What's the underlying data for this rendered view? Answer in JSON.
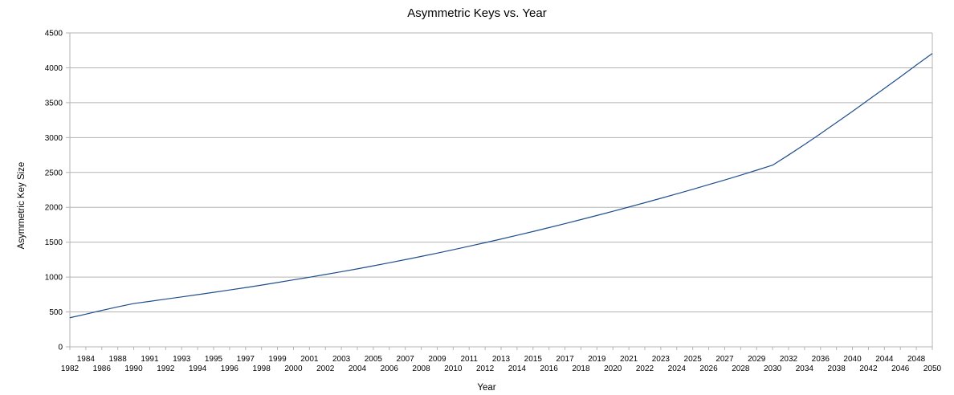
{
  "chart_data": {
    "type": "line",
    "title": "Asymmetric Keys vs. Year",
    "xlabel": "Year",
    "ylabel": "Asymmetric Key Size",
    "grid": true,
    "legend": "none",
    "ylim": [
      0,
      4500
    ],
    "yticks": [
      0,
      500,
      1000,
      1500,
      2000,
      2500,
      3000,
      3500,
      4000,
      4500
    ],
    "xlim": [
      1982,
      2050
    ],
    "x_tick_labels": [
      "1982",
      "1984",
      "1986",
      "1988",
      "1990",
      "1991",
      "1992",
      "1993",
      "1994",
      "1995",
      "1996",
      "1997",
      "1998",
      "1999",
      "2000",
      "2001",
      "2002",
      "2003",
      "2004",
      "2005",
      "2006",
      "2007",
      "2008",
      "2009",
      "2010",
      "2011",
      "2012",
      "2013",
      "2014",
      "2015",
      "2016",
      "2017",
      "2018",
      "2019",
      "2020",
      "2021",
      "2022",
      "2023",
      "2024",
      "2025",
      "2026",
      "2027",
      "2028",
      "2029",
      "2030",
      "2032",
      "2034",
      "2036",
      "2038",
      "2040",
      "2042",
      "2044",
      "2046",
      "2048",
      "2050"
    ],
    "series": [
      {
        "color": "#1f4e8c",
        "x": [
          1982,
          1984,
          1986,
          1988,
          1990,
          1991,
          1992,
          1993,
          1994,
          1995,
          1996,
          1997,
          1998,
          1999,
          2000,
          2001,
          2002,
          2003,
          2004,
          2005,
          2006,
          2007,
          2008,
          2009,
          2010,
          2011,
          2012,
          2013,
          2014,
          2015,
          2016,
          2017,
          2018,
          2019,
          2020,
          2021,
          2022,
          2023,
          2024,
          2025,
          2026,
          2027,
          2028,
          2029,
          2030,
          2032,
          2034,
          2036,
          2038,
          2040,
          2042,
          2044,
          2046,
          2048,
          2050
        ],
        "values": [
          417,
          468,
          522,
          573,
          621,
          652,
          684,
          716,
          748,
          781,
          815,
          849,
          885,
          922,
          960,
          998,
          1037,
          1077,
          1118,
          1161,
          1205,
          1250,
          1296,
          1343,
          1392,
          1442,
          1493,
          1545,
          1599,
          1653,
          1709,
          1766,
          1824,
          1883,
          1943,
          2004,
          2066,
          2129,
          2193,
          2258,
          2325,
          2392,
          2461,
          2532,
          2604,
          2750,
          2900,
          3055,
          3215,
          3375,
          3540,
          3705,
          3870,
          4040,
          4205
        ]
      }
    ]
  }
}
